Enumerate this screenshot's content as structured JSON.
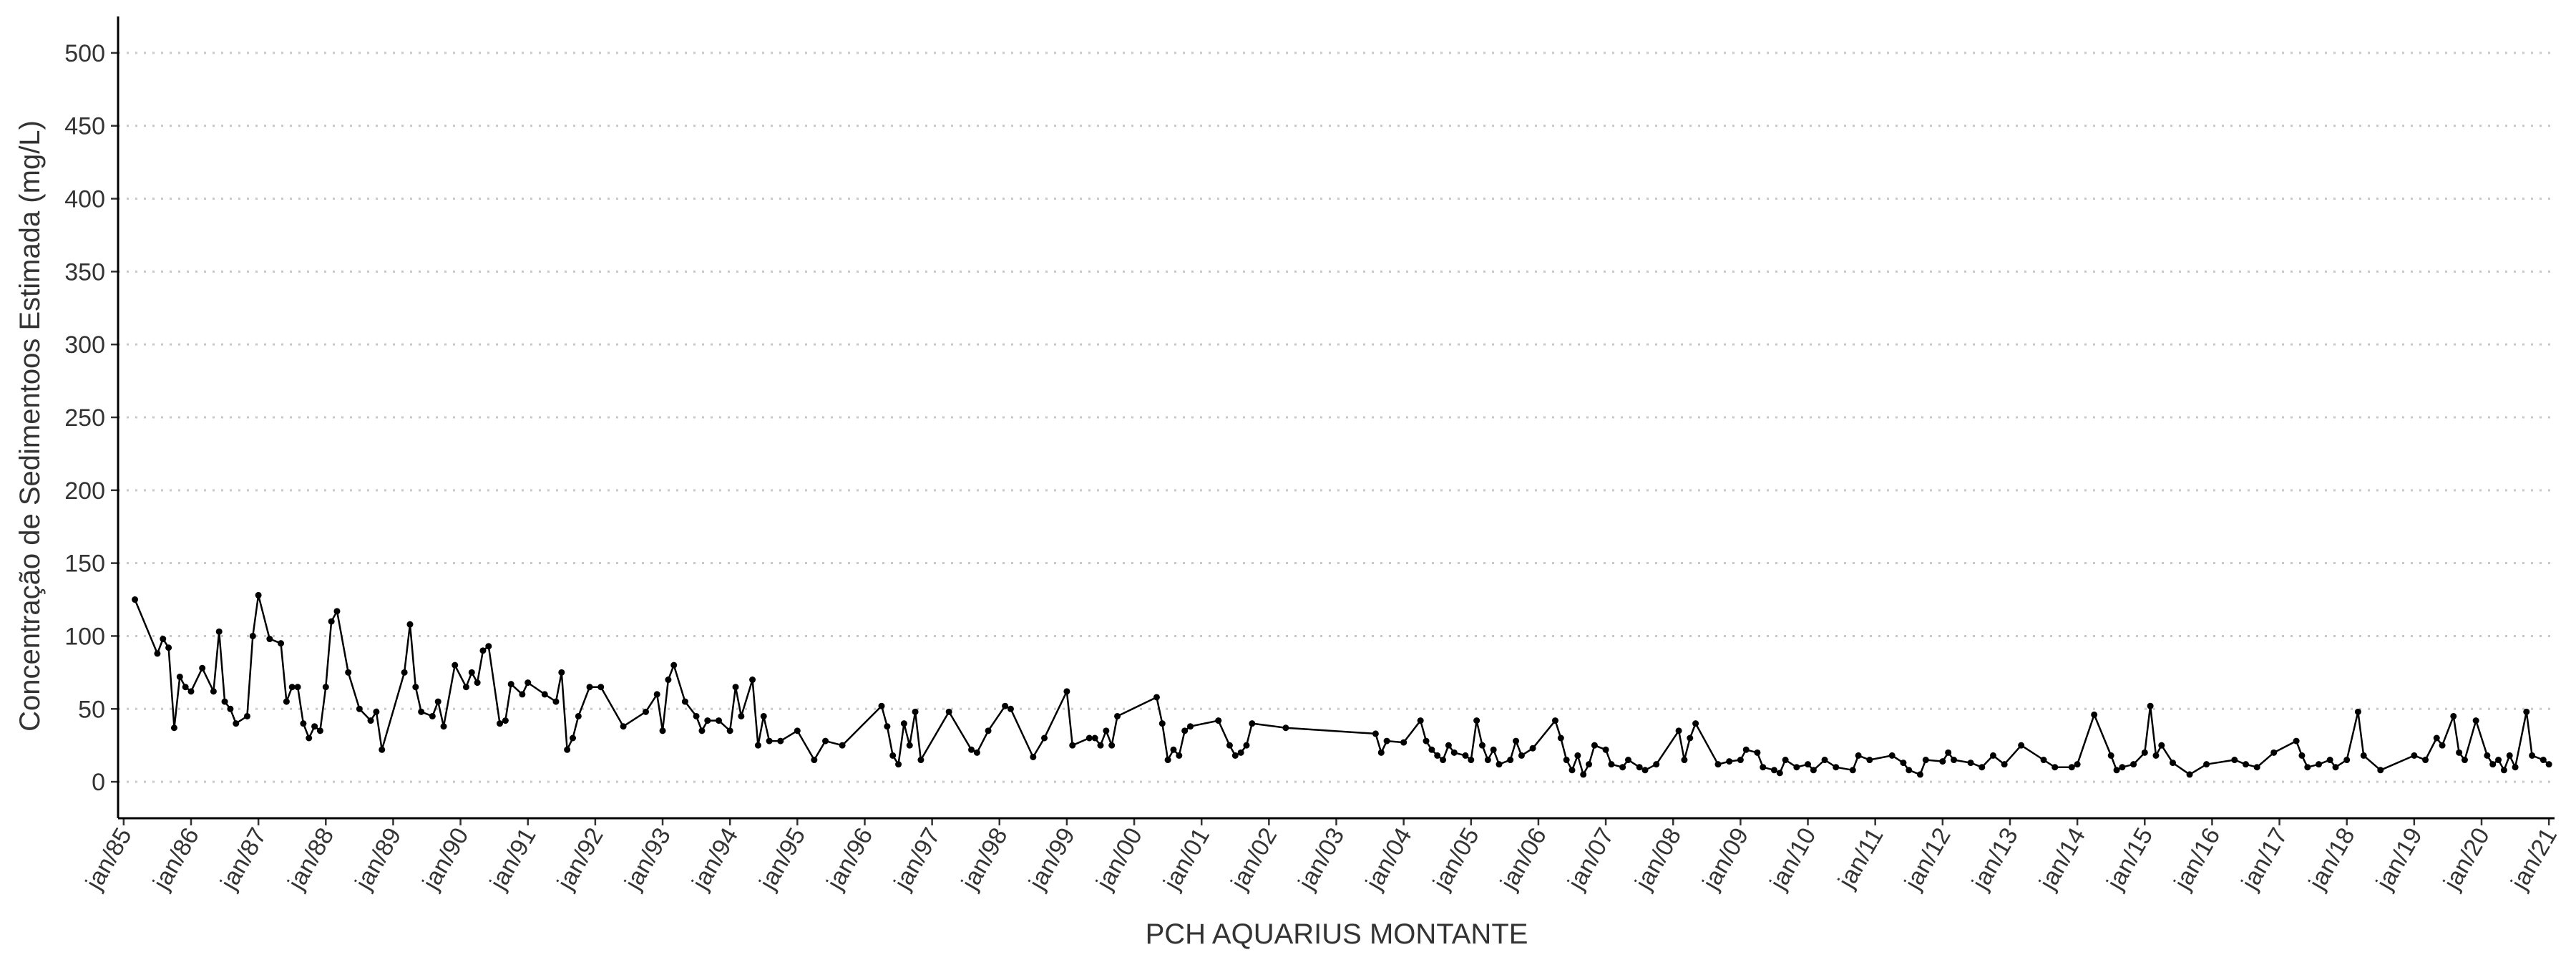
{
  "chart_data": {
    "type": "line",
    "x_label": "PCH AQUARIUS MONTANTE",
    "y_label": "Concentração de Sedimentoos Estimada (mg/L)",
    "color": "#000000",
    "grid": true,
    "xlim": [
      "1984-12",
      "2021-02"
    ],
    "ylim": [
      -25,
      525
    ],
    "yticks": [
      0,
      50,
      100,
      150,
      200,
      250,
      300,
      350,
      400,
      450,
      500
    ],
    "xticks": [
      {
        "value": "1985-01",
        "label": "jan/85"
      },
      {
        "value": "1986-01",
        "label": "jan/86"
      },
      {
        "value": "1987-01",
        "label": "jan/87"
      },
      {
        "value": "1988-01",
        "label": "jan/88"
      },
      {
        "value": "1989-01",
        "label": "jan/89"
      },
      {
        "value": "1990-01",
        "label": "jan/90"
      },
      {
        "value": "1991-01",
        "label": "jan/91"
      },
      {
        "value": "1992-01",
        "label": "jan/92"
      },
      {
        "value": "1993-01",
        "label": "jan/93"
      },
      {
        "value": "1994-01",
        "label": "jan/94"
      },
      {
        "value": "1995-01",
        "label": "jan/95"
      },
      {
        "value": "1996-01",
        "label": "jan/96"
      },
      {
        "value": "1997-01",
        "label": "jan/97"
      },
      {
        "value": "1998-01",
        "label": "jan/98"
      },
      {
        "value": "1999-01",
        "label": "jan/99"
      },
      {
        "value": "2000-01",
        "label": "jan/00"
      },
      {
        "value": "2001-01",
        "label": "jan/01"
      },
      {
        "value": "2002-01",
        "label": "jan/02"
      },
      {
        "value": "2003-01",
        "label": "jan/03"
      },
      {
        "value": "2004-01",
        "label": "jan/04"
      },
      {
        "value": "2005-01",
        "label": "jan/05"
      },
      {
        "value": "2006-01",
        "label": "jan/06"
      },
      {
        "value": "2007-01",
        "label": "jan/07"
      },
      {
        "value": "2008-01",
        "label": "jan/08"
      },
      {
        "value": "2009-01",
        "label": "jan/09"
      },
      {
        "value": "2010-01",
        "label": "jan/10"
      },
      {
        "value": "2011-01",
        "label": "jan/11"
      },
      {
        "value": "2012-01",
        "label": "jan/12"
      },
      {
        "value": "2013-01",
        "label": "jan/13"
      },
      {
        "value": "2014-01",
        "label": "jan/14"
      },
      {
        "value": "2015-01",
        "label": "jan/15"
      },
      {
        "value": "2016-01",
        "label": "jan/16"
      },
      {
        "value": "2017-01",
        "label": "jan/17"
      },
      {
        "value": "2018-01",
        "label": "jan/18"
      },
      {
        "value": "2019-01",
        "label": "jan/19"
      },
      {
        "value": "2020-01",
        "label": "jan/20"
      },
      {
        "value": "2021-01",
        "label": "jan/21"
      }
    ],
    "x": [
      "1985-03",
      "1985-07",
      "1985-08",
      "1985-09",
      "1985-10",
      "1985-11",
      "1985-12",
      "1986-01",
      "1986-03",
      "1986-05",
      "1986-06",
      "1986-07",
      "1986-08",
      "1986-09",
      "1986-11",
      "1986-12",
      "1987-01",
      "1987-03",
      "1987-05",
      "1987-06",
      "1987-07",
      "1987-08",
      "1987-09",
      "1987-10",
      "1987-11",
      "1987-12",
      "1988-01",
      "1988-02",
      "1988-03",
      "1988-05",
      "1988-07",
      "1988-09",
      "1988-10",
      "1988-11",
      "1989-03",
      "1989-04",
      "1989-05",
      "1989-06",
      "1989-08",
      "1989-09",
      "1989-10",
      "1989-12",
      "1990-02",
      "1990-03",
      "1990-04",
      "1990-05",
      "1990-06",
      "1990-08",
      "1990-09",
      "1990-10",
      "1990-12",
      "1991-01",
      "1991-04",
      "1991-06",
      "1991-07",
      "1991-08",
      "1991-09",
      "1991-10",
      "1991-12",
      "1992-02",
      "1992-06",
      "1992-10",
      "1992-12",
      "1993-01",
      "1993-02",
      "1993-03",
      "1993-05",
      "1993-07",
      "1993-08",
      "1993-09",
      "1993-11",
      "1994-01",
      "1994-02",
      "1994-03",
      "1994-05",
      "1994-06",
      "1994-07",
      "1994-08",
      "1994-10",
      "1995-01",
      "1995-04",
      "1995-06",
      "1995-09",
      "1996-04",
      "1996-05",
      "1996-06",
      "1996-07",
      "1996-08",
      "1996-09",
      "1996-10",
      "1996-11",
      "1997-04",
      "1997-08",
      "1997-09",
      "1997-11",
      "1998-02",
      "1998-03",
      "1998-07",
      "1998-09",
      "1999-01",
      "1999-02",
      "1999-05",
      "1999-06",
      "1999-07",
      "1999-08",
      "1999-09",
      "1999-10",
      "2000-05",
      "2000-06",
      "2000-07",
      "2000-08",
      "2000-09",
      "2000-10",
      "2000-11",
      "2001-04",
      "2001-06",
      "2001-07",
      "2001-08",
      "2001-09",
      "2001-10",
      "2002-04",
      "2003-08",
      "2003-09",
      "2003-10",
      "2004-01",
      "2004-04",
      "2004-05",
      "2004-06",
      "2004-07",
      "2004-08",
      "2004-09",
      "2004-10",
      "2004-12",
      "2005-01",
      "2005-02",
      "2005-03",
      "2005-04",
      "2005-05",
      "2005-06",
      "2005-08",
      "2005-09",
      "2005-10",
      "2005-12",
      "2006-04",
      "2006-05",
      "2006-06",
      "2006-07",
      "2006-08",
      "2006-09",
      "2006-10",
      "2006-11",
      "2007-01",
      "2007-02",
      "2007-04",
      "2007-05",
      "2007-07",
      "2007-08",
      "2007-10",
      "2008-02",
      "2008-03",
      "2008-04",
      "2008-05",
      "2008-09",
      "2008-11",
      "2009-01",
      "2009-02",
      "2009-04",
      "2009-05",
      "2009-07",
      "2009-08",
      "2009-09",
      "2009-11",
      "2010-01",
      "2010-02",
      "2010-04",
      "2010-06",
      "2010-09",
      "2010-10",
      "2010-12",
      "2011-04",
      "2011-06",
      "2011-07",
      "2011-09",
      "2011-10",
      "2012-01",
      "2012-02",
      "2012-03",
      "2012-06",
      "2012-08",
      "2012-10",
      "2012-12",
      "2013-03",
      "2013-07",
      "2013-09",
      "2013-12",
      "2014-01",
      "2014-04",
      "2014-07",
      "2014-08",
      "2014-09",
      "2014-11",
      "2015-01",
      "2015-02",
      "2015-03",
      "2015-04",
      "2015-06",
      "2015-09",
      "2015-12",
      "2016-05",
      "2016-07",
      "2016-09",
      "2016-12",
      "2017-04",
      "2017-05",
      "2017-06",
      "2017-08",
      "2017-10",
      "2017-11",
      "2018-01",
      "2018-03",
      "2018-04",
      "2018-07",
      "2019-01",
      "2019-03",
      "2019-05",
      "2019-06",
      "2019-08",
      "2019-09",
      "2019-10",
      "2019-12",
      "2020-02",
      "2020-03",
      "2020-04",
      "2020-05",
      "2020-06",
      "2020-07",
      "2020-09",
      "2020-10",
      "2020-12",
      "2021-01"
    ],
    "values": [
      125,
      88,
      98,
      92,
      37,
      72,
      65,
      62,
      78,
      62,
      103,
      55,
      50,
      40,
      45,
      100,
      128,
      98,
      95,
      55,
      65,
      65,
      40,
      30,
      38,
      35,
      65,
      110,
      117,
      75,
      50,
      42,
      48,
      22,
      75,
      108,
      65,
      48,
      45,
      55,
      38,
      80,
      65,
      75,
      68,
      90,
      93,
      40,
      42,
      67,
      60,
      68,
      60,
      55,
      75,
      22,
      30,
      45,
      65,
      65,
      38,
      48,
      60,
      35,
      70,
      80,
      55,
      45,
      35,
      42,
      42,
      35,
      65,
      45,
      70,
      25,
      45,
      28,
      28,
      35,
      15,
      28,
      25,
      52,
      38,
      18,
      12,
      40,
      25,
      48,
      15,
      48,
      22,
      20,
      35,
      52,
      50,
      17,
      30,
      62,
      25,
      30,
      30,
      25,
      35,
      25,
      45,
      58,
      40,
      15,
      22,
      18,
      35,
      38,
      42,
      25,
      18,
      20,
      25,
      40,
      37,
      33,
      20,
      28,
      27,
      42,
      28,
      22,
      18,
      15,
      25,
      20,
      18,
      15,
      42,
      25,
      15,
      22,
      12,
      15,
      28,
      18,
      23,
      42,
      30,
      15,
      8,
      18,
      5,
      12,
      25,
      22,
      12,
      10,
      15,
      10,
      8,
      12,
      35,
      15,
      30,
      40,
      12,
      14,
      15,
      22,
      20,
      10,
      8,
      6,
      15,
      10,
      12,
      8,
      15,
      10,
      8,
      18,
      15,
      18,
      13,
      8,
      5,
      15,
      14,
      20,
      15,
      13,
      10,
      18,
      12,
      25,
      15,
      10,
      10,
      12,
      46,
      18,
      8,
      10,
      12,
      20,
      52,
      18,
      25,
      13,
      5,
      12,
      15,
      12,
      10,
      20,
      28,
      18,
      10,
      12,
      15,
      10,
      15,
      48,
      18,
      8,
      18,
      15,
      30,
      25,
      45,
      20,
      15,
      42,
      18,
      12,
      15,
      8,
      18,
      10,
      48,
      18,
      15,
      12
    ]
  }
}
